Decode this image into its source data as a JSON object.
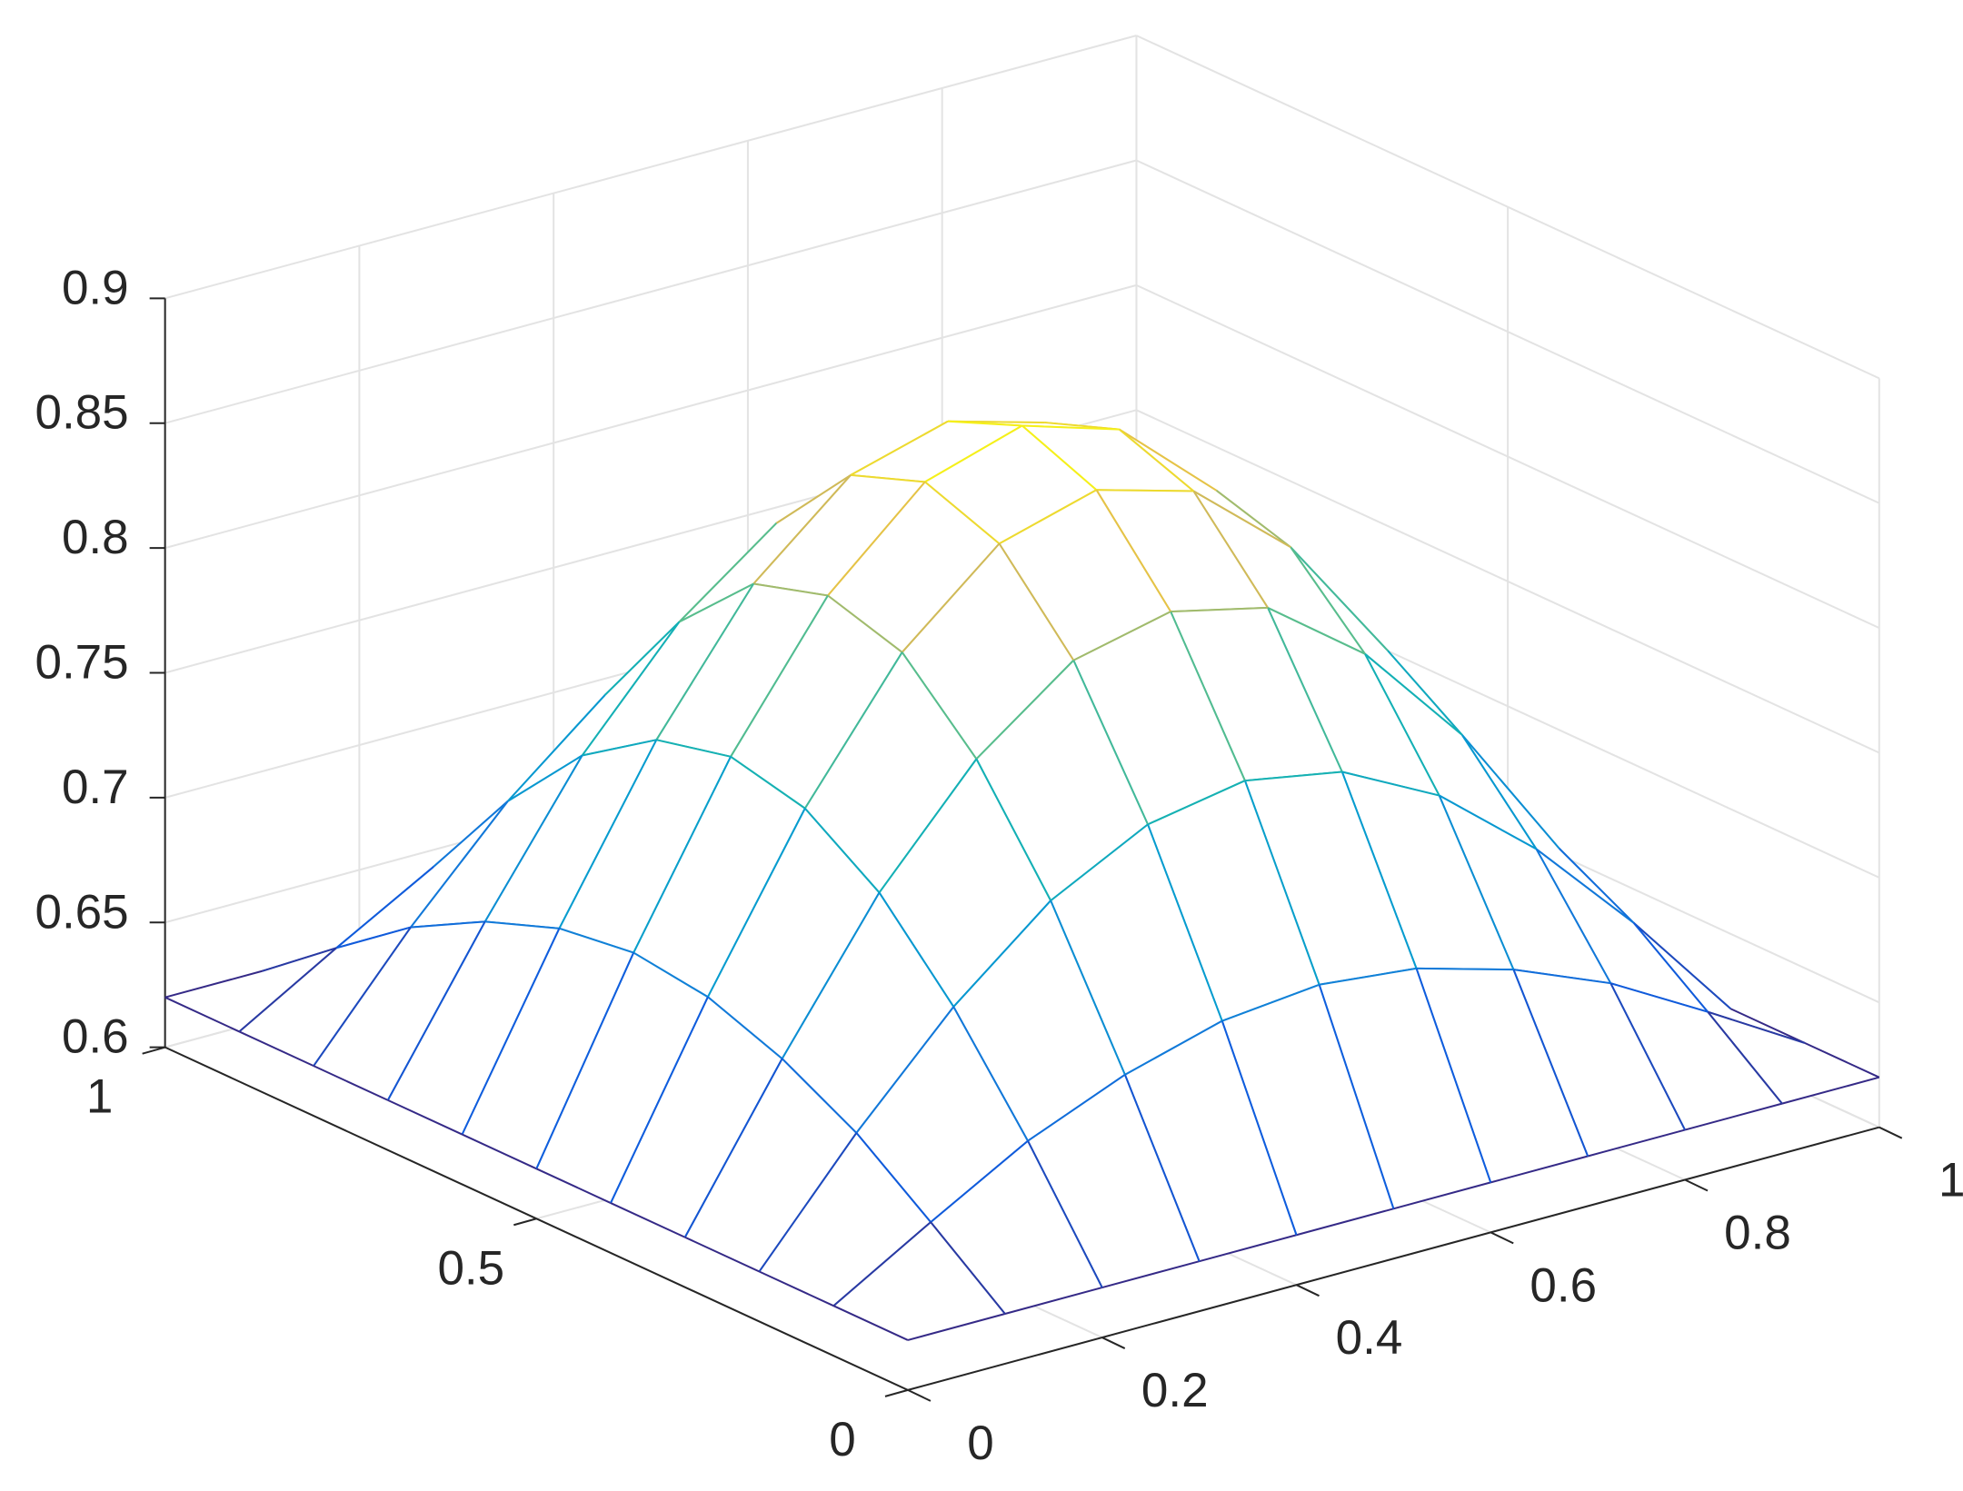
{
  "chart_data": {
    "type": "mesh",
    "colormap": "parula",
    "grid": true,
    "x": [
      0,
      0.1,
      0.2,
      0.3,
      0.4,
      0.5,
      0.6,
      0.7,
      0.8,
      0.9,
      1
    ],
    "y": [
      0,
      0.1,
      0.2,
      0.3,
      0.4,
      0.5,
      0.6,
      0.7,
      0.8,
      0.9,
      1
    ],
    "z": [
      [
        0.62,
        0.62,
        0.62,
        0.62,
        0.62,
        0.62,
        0.62,
        0.62,
        0.62,
        0.62,
        0.62
      ],
      [
        0.62,
        0.643,
        0.665,
        0.681,
        0.692,
        0.696,
        0.692,
        0.681,
        0.665,
        0.643,
        0.62
      ],
      [
        0.62,
        0.665,
        0.705,
        0.737,
        0.757,
        0.764,
        0.757,
        0.737,
        0.705,
        0.665,
        0.62
      ],
      [
        0.62,
        0.681,
        0.737,
        0.78,
        0.809,
        0.818,
        0.809,
        0.78,
        0.737,
        0.681,
        0.62
      ],
      [
        0.62,
        0.692,
        0.757,
        0.809,
        0.842,
        0.853,
        0.842,
        0.809,
        0.757,
        0.692,
        0.62
      ],
      [
        0.62,
        0.696,
        0.764,
        0.818,
        0.853,
        0.865,
        0.853,
        0.818,
        0.764,
        0.696,
        0.62
      ],
      [
        0.62,
        0.692,
        0.757,
        0.809,
        0.842,
        0.853,
        0.842,
        0.809,
        0.757,
        0.692,
        0.62
      ],
      [
        0.62,
        0.681,
        0.737,
        0.78,
        0.809,
        0.818,
        0.809,
        0.78,
        0.737,
        0.681,
        0.62
      ],
      [
        0.62,
        0.665,
        0.705,
        0.737,
        0.757,
        0.764,
        0.757,
        0.737,
        0.705,
        0.665,
        0.62
      ],
      [
        0.62,
        0.643,
        0.665,
        0.681,
        0.692,
        0.696,
        0.692,
        0.681,
        0.665,
        0.643,
        0.62
      ],
      [
        0.62,
        0.62,
        0.62,
        0.62,
        0.62,
        0.62,
        0.62,
        0.62,
        0.62,
        0.62,
        0.62
      ]
    ],
    "xlim": [
      0,
      1
    ],
    "ylim": [
      0,
      1
    ],
    "zlim": [
      0.6,
      0.9
    ],
    "xticks": [
      0,
      0.2,
      0.4,
      0.6,
      0.8,
      1
    ],
    "yticks": [
      0,
      0.5,
      1
    ],
    "zticks": [
      0.6,
      0.65,
      0.7,
      0.75,
      0.8,
      0.85,
      0.9
    ]
  }
}
